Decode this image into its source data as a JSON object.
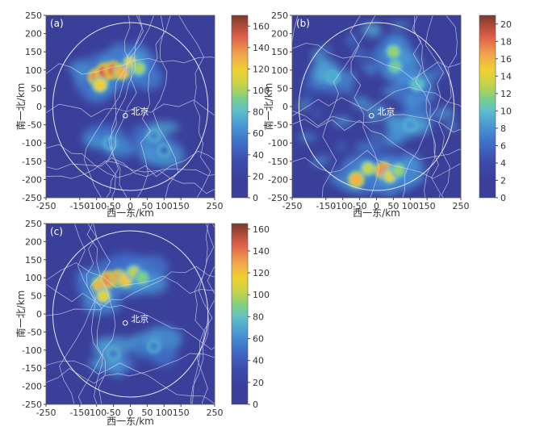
{
  "figure": {
    "panels": [
      {
        "id": "a",
        "tag": "(a)",
        "city_label": "北京",
        "xlabel": "西一东/km",
        "ylabel": "南一北/km",
        "x_ticks": [
          "-250",
          "-150",
          "-100",
          "-50",
          "0",
          "50",
          "100",
          "150",
          "250"
        ],
        "y_ticks": [
          "250",
          "200",
          "150",
          "100",
          "50",
          "0",
          "-50",
          "-100",
          "-150",
          "-200",
          "-250"
        ],
        "colorbar_ticks": [
          "160",
          "140",
          "120",
          "100",
          "80",
          "60",
          "40",
          "20",
          "0"
        ]
      },
      {
        "id": "b",
        "tag": "(b)",
        "city_label": "北京",
        "xlabel": "西一东/km",
        "ylabel": "南一北/km",
        "x_ticks": [
          "-250",
          "-150",
          "-100",
          "-50",
          "0",
          "50",
          "100",
          "150",
          "250"
        ],
        "y_ticks": [
          "250",
          "200",
          "150",
          "100",
          "50",
          "0",
          "-50",
          "-100",
          "-150",
          "-200",
          "-250"
        ],
        "colorbar_ticks": [
          "20",
          "18",
          "16",
          "14",
          "12",
          "10",
          "8",
          "6",
          "4",
          "2",
          "0"
        ]
      },
      {
        "id": "c",
        "tag": "(c)",
        "city_label": "北京",
        "xlabel": "西一东/km",
        "ylabel": "南一北/km",
        "x_ticks": [
          "-250",
          "-150",
          "-100",
          "-50",
          "0",
          "50",
          "100",
          "150",
          "250"
        ],
        "y_ticks": [
          "250",
          "200",
          "150",
          "100",
          "50",
          "0",
          "-50",
          "-100",
          "-150",
          "-200",
          "-250"
        ],
        "colorbar_ticks": [
          "160",
          "140",
          "120",
          "100",
          "80",
          "60",
          "40",
          "20",
          "0"
        ]
      }
    ]
  },
  "chart_data": [
    {
      "type": "heatmap",
      "panel": "(a)",
      "xlabel": "西一东/km",
      "ylabel": "南一北/km",
      "xlim": [
        -250,
        250
      ],
      "ylim": [
        -250,
        250
      ],
      "x_ticks": [
        -250,
        -150,
        -100,
        -50,
        0,
        50,
        100,
        150,
        250
      ],
      "y_ticks": [
        250,
        200,
        150,
        100,
        50,
        0,
        -50,
        -100,
        -150,
        -200,
        -250
      ],
      "colorbar_range": [
        0,
        170
      ],
      "colorbar_ticks": [
        0,
        20,
        40,
        60,
        80,
        100,
        120,
        140,
        160
      ],
      "annotations": [
        "北京"
      ],
      "hotspots": [
        {
          "x": -100,
          "y": 80,
          "value": 140
        },
        {
          "x": -75,
          "y": 95,
          "value": 150
        },
        {
          "x": -50,
          "y": 100,
          "value": 145
        },
        {
          "x": -25,
          "y": 95,
          "value": 130
        },
        {
          "x": -90,
          "y": 60,
          "value": 120
        },
        {
          "x": 0,
          "y": 120,
          "value": 110
        },
        {
          "x": 25,
          "y": 105,
          "value": 100
        },
        {
          "x": -60,
          "y": -100,
          "value": 60
        },
        {
          "x": 70,
          "y": -80,
          "value": 60
        },
        {
          "x": 100,
          "y": -120,
          "value": 50
        }
      ]
    },
    {
      "type": "heatmap",
      "panel": "(b)",
      "xlabel": "西一东/km",
      "ylabel": "南一北/km",
      "xlim": [
        -250,
        250
      ],
      "ylim": [
        -250,
        250
      ],
      "x_ticks": [
        -250,
        -150,
        -100,
        -50,
        0,
        50,
        100,
        150,
        250
      ],
      "y_ticks": [
        250,
        200,
        150,
        100,
        50,
        0,
        -50,
        -100,
        -150,
        -200,
        -250
      ],
      "colorbar_range": [
        0,
        21
      ],
      "colorbar_ticks": [
        0,
        2,
        4,
        6,
        8,
        10,
        12,
        14,
        16,
        18,
        20
      ],
      "annotations": [
        "北京"
      ],
      "hotspots": [
        {
          "x": -60,
          "y": -200,
          "value": 16
        },
        {
          "x": -25,
          "y": -170,
          "value": 13
        },
        {
          "x": 20,
          "y": -175,
          "value": 17
        },
        {
          "x": 40,
          "y": -190,
          "value": 14
        },
        {
          "x": 65,
          "y": -175,
          "value": 12
        },
        {
          "x": 50,
          "y": 150,
          "value": 12
        },
        {
          "x": 55,
          "y": 110,
          "value": 11
        },
        {
          "x": 120,
          "y": 60,
          "value": 10
        },
        {
          "x": -130,
          "y": 80,
          "value": 9
        },
        {
          "x": 100,
          "y": -50,
          "value": 8
        }
      ]
    },
    {
      "type": "heatmap",
      "panel": "(c)",
      "xlabel": "西一东/km",
      "ylabel": "南一北/km",
      "xlim": [
        -250,
        250
      ],
      "ylim": [
        -250,
        250
      ],
      "x_ticks": [
        -250,
        -150,
        -100,
        -50,
        0,
        50,
        100,
        150,
        250
      ],
      "y_ticks": [
        250,
        200,
        150,
        100,
        50,
        0,
        -50,
        -100,
        -150,
        -200,
        -250
      ],
      "colorbar_range": [
        0,
        165
      ],
      "colorbar_ticks": [
        0,
        20,
        40,
        60,
        80,
        100,
        120,
        140,
        160
      ],
      "annotations": [
        "北京"
      ],
      "hotspots": [
        {
          "x": -90,
          "y": 80,
          "value": 125
        },
        {
          "x": -65,
          "y": 95,
          "value": 135
        },
        {
          "x": -35,
          "y": 100,
          "value": 130
        },
        {
          "x": -15,
          "y": 95,
          "value": 120
        },
        {
          "x": -80,
          "y": 50,
          "value": 110
        },
        {
          "x": 10,
          "y": 115,
          "value": 100
        },
        {
          "x": 35,
          "y": 100,
          "value": 90
        },
        {
          "x": -50,
          "y": -110,
          "value": 55
        },
        {
          "x": 70,
          "y": -90,
          "value": 55
        }
      ]
    }
  ]
}
